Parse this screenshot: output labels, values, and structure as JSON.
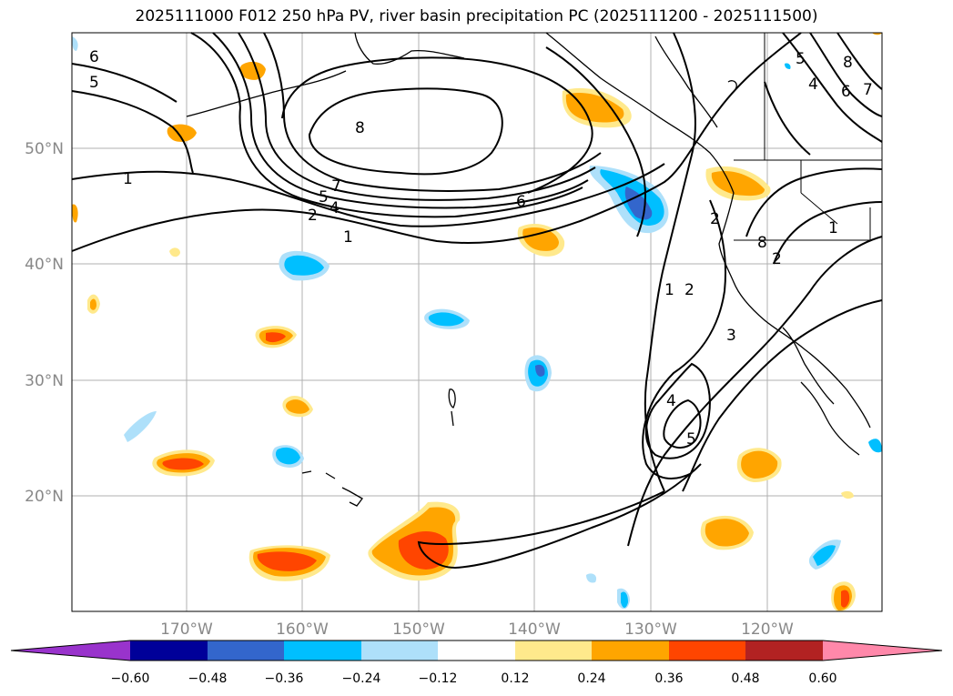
{
  "title": "2025111000 F012 250 hPa PV, river basin precipitation PC (2025111200 - 2025111500)",
  "map": {
    "lon_range": [
      -180,
      -110
    ],
    "lat_range": [
      10,
      60
    ],
    "lat_ticks": [
      {
        "lat": 50,
        "label": "50°N"
      },
      {
        "lat": 40,
        "label": "40°N"
      },
      {
        "lat": 30,
        "label": "30°N"
      },
      {
        "lat": 20,
        "label": "20°N"
      }
    ],
    "lon_ticks": [
      {
        "lon": -170,
        "label": "170°W"
      },
      {
        "lon": -160,
        "label": "160°W"
      },
      {
        "lon": -150,
        "label": "150°W"
      },
      {
        "lon": -140,
        "label": "140°W"
      },
      {
        "lon": -130,
        "label": "130°W"
      },
      {
        "lon": -120,
        "label": "120°W"
      }
    ],
    "contour_labels": [
      "6",
      "5",
      "1",
      "8",
      "7",
      "5",
      "4",
      "2",
      "1",
      "6",
      "5",
      "4",
      "6",
      "7",
      "8",
      "1",
      "2",
      "1",
      "2",
      "3",
      "4",
      "5",
      "8",
      "2"
    ]
  },
  "colorbar": {
    "ticks": [
      "−0.60",
      "−0.48",
      "−0.36",
      "−0.24",
      "−0.12",
      "0.12",
      "0.24",
      "0.36",
      "0.48",
      "0.60"
    ],
    "colors": {
      "below": "#9933cc",
      "b1": "#000099",
      "b2": "#3366cc",
      "b3": "#00bfff",
      "b4": "#aee0fa",
      "b5": "#ffffff",
      "b6": "#ffe98c",
      "b7": "#ffa500",
      "b8": "#ff4500",
      "b9": "#b22222",
      "above": "#ff88aa"
    }
  }
}
